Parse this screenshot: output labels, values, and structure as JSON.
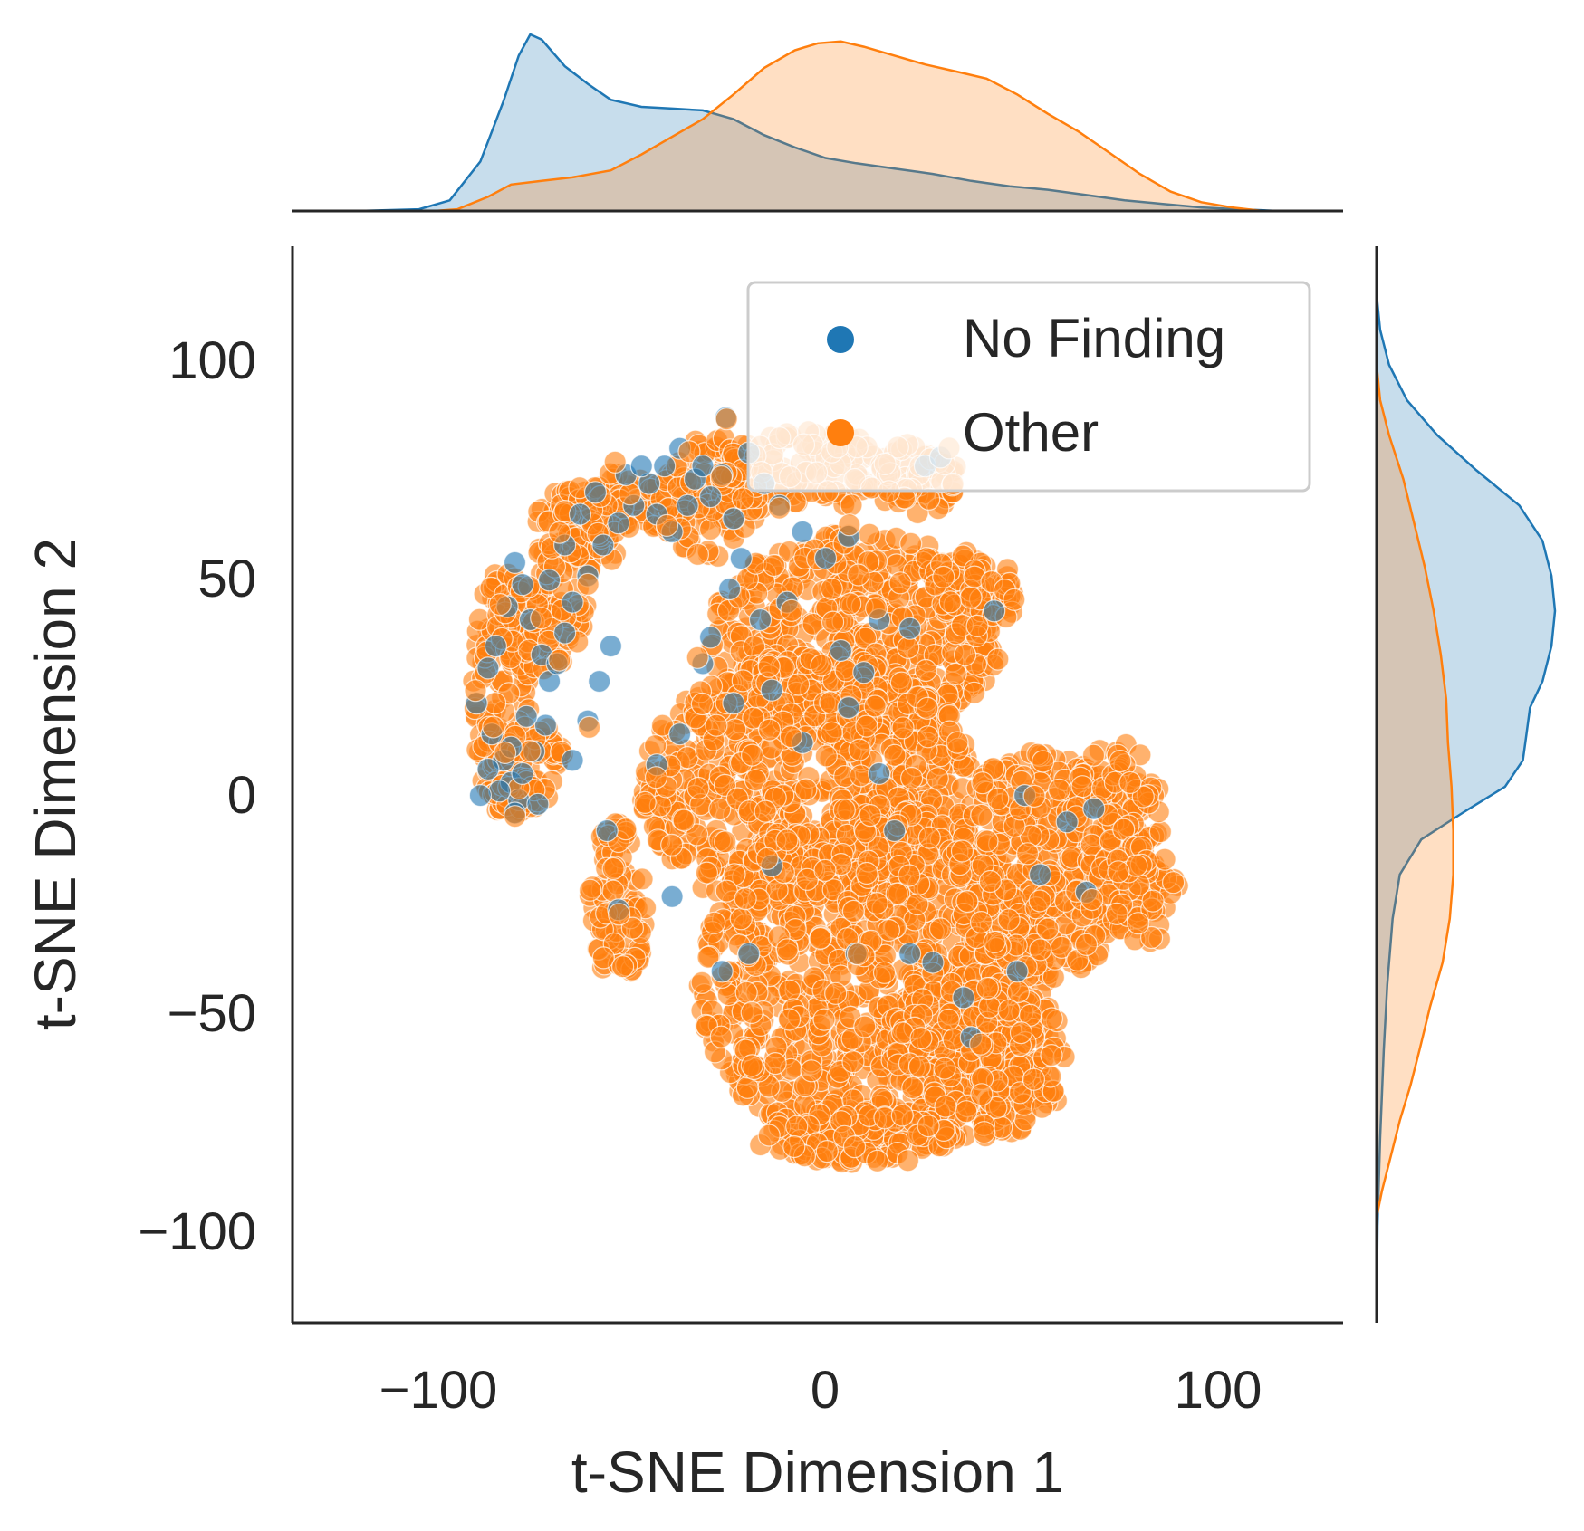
{
  "chart_data": {
    "type": "scatter",
    "subtype": "jointplot-with-marginal-kde",
    "title": "",
    "xlabel": "t-SNE Dimension 1",
    "ylabel": "t-SNE Dimension 2",
    "xlim": [
      -137,
      137
    ],
    "ylim": [
      -122,
      123
    ],
    "xticks": [
      -100,
      0,
      100
    ],
    "xtick_labels": [
      "−100",
      "0",
      "100"
    ],
    "yticks": [
      -100,
      -50,
      0,
      50,
      100
    ],
    "ytick_labels": [
      "−100",
      "−50",
      "0",
      "50",
      "100"
    ],
    "grid": false,
    "legend": {
      "position": "top-right",
      "entries": [
        "No Finding",
        "Other"
      ]
    },
    "series": [
      {
        "name": "No Finding",
        "color": "#1f77b4",
        "points": [
          [
            -89,
            19
          ],
          [
            -86,
            27
          ],
          [
            -84,
            32
          ],
          [
            -81,
            41
          ],
          [
            -79,
            51
          ],
          [
            -77,
            46
          ],
          [
            -75,
            38
          ],
          [
            -72,
            30
          ],
          [
            -70,
            24
          ],
          [
            -68,
            28
          ],
          [
            -66,
            35
          ],
          [
            -64,
            42
          ],
          [
            -60,
            48
          ],
          [
            -56,
            55
          ],
          [
            -52,
            60
          ],
          [
            -48,
            64
          ],
          [
            -44,
            69
          ],
          [
            -40,
            73
          ],
          [
            -36,
            77
          ],
          [
            -32,
            70
          ],
          [
            -28,
            66
          ],
          [
            -24,
            84
          ],
          [
            -22,
            61
          ],
          [
            -20,
            52
          ],
          [
            -85,
            12
          ],
          [
            -82,
            6
          ],
          [
            -80,
            1
          ],
          [
            -78,
            -3
          ],
          [
            -83,
            -1
          ],
          [
            -77,
            3
          ],
          [
            -74,
            8
          ],
          [
            -71,
            14
          ],
          [
            -88,
            -2
          ],
          [
            -79,
            -6
          ],
          [
            -73,
            -4
          ],
          [
            -86,
            4
          ],
          [
            -80,
            9
          ],
          [
            -76,
            16
          ],
          [
            -70,
            47
          ],
          [
            -66,
            55
          ],
          [
            -62,
            62
          ],
          [
            -58,
            67
          ],
          [
            -50,
            71
          ],
          [
            -46,
            73
          ],
          [
            -42,
            62
          ],
          [
            -38,
            58
          ],
          [
            -34,
            64
          ],
          [
            -30,
            73
          ],
          [
            -25,
            71
          ],
          [
            -18,
            76
          ],
          [
            -14,
            69
          ],
          [
            -10,
            64
          ],
          [
            -4,
            58
          ],
          [
            2,
            52
          ],
          [
            8,
            57
          ],
          [
            -23,
            45
          ],
          [
            -15,
            38
          ],
          [
            -8,
            42
          ],
          [
            6,
            31
          ],
          [
            12,
            26
          ],
          [
            16,
            38
          ],
          [
            24,
            36
          ],
          [
            28,
            73
          ],
          [
            32,
            75
          ],
          [
            46,
            40
          ],
          [
            -28,
            34
          ],
          [
            -30,
            28
          ],
          [
            -12,
            22
          ],
          [
            -22,
            19
          ],
          [
            -4,
            10
          ],
          [
            8,
            18
          ],
          [
            -36,
            12
          ],
          [
            -42,
            5
          ],
          [
            16,
            3
          ],
          [
            20,
            -10
          ],
          [
            -12,
            -18
          ],
          [
            -38,
            -25
          ],
          [
            -55,
            -10
          ],
          [
            -52,
            -28
          ],
          [
            -25,
            -42
          ],
          [
            -18,
            -38
          ],
          [
            10,
            -38
          ],
          [
            24,
            -38
          ],
          [
            30,
            -40
          ],
          [
            40,
            -57
          ],
          [
            38,
            -48
          ],
          [
            52,
            -42
          ],
          [
            54,
            -2
          ],
          [
            58,
            -20
          ],
          [
            65,
            -8
          ],
          [
            70,
            -24
          ],
          [
            72,
            -5
          ],
          [
            -64,
            6
          ],
          [
            -60,
            15
          ],
          [
            -57,
            24
          ],
          [
            -54,
            32
          ]
        ]
      },
      {
        "name": "Other",
        "color": "#ff7f0e",
        "shape": {
          "blobs": [
            [
              -82,
              22,
              8,
              28
            ],
            [
              -72,
              38,
              12,
              12
            ],
            [
              -63,
              58,
              12,
              10
            ],
            [
              -52,
              64,
              15,
              8
            ],
            [
              -28,
              66,
              14,
              14
            ],
            [
              -2,
              72,
              26,
              9
            ],
            [
              25,
              70,
              12,
              8
            ],
            [
              10,
              34,
              38,
              24
            ],
            [
              -2,
              0,
              44,
              30
            ],
            [
              15,
              -44,
              46,
              40
            ],
            [
              58,
              -18,
              24,
              26
            ],
            [
              78,
              -6,
              12,
              16
            ],
            [
              85,
              -24,
              10,
              12
            ],
            [
              42,
              -62,
              24,
              18
            ],
            [
              10,
              -80,
              26,
              6
            ],
            [
              -52,
              -26,
              8,
              18
            ],
            [
              40,
              44,
              12,
              10
            ],
            [
              -74,
              6,
              8,
              8
            ],
            [
              -78,
              -2,
              8,
              4
            ]
          ]
        }
      }
    ],
    "marginal_x_kde": {
      "No Finding": [
        [
          -120,
          0
        ],
        [
          -104,
          0.01
        ],
        [
          -96,
          0.06
        ],
        [
          -88,
          0.28
        ],
        [
          -82,
          0.62
        ],
        [
          -78,
          0.88
        ],
        [
          -75,
          1.0
        ],
        [
          -72,
          0.97
        ],
        [
          -66,
          0.82
        ],
        [
          -60,
          0.72
        ],
        [
          -54,
          0.63
        ],
        [
          -46,
          0.59
        ],
        [
          -38,
          0.58
        ],
        [
          -30,
          0.57
        ],
        [
          -22,
          0.52
        ],
        [
          -14,
          0.43
        ],
        [
          -6,
          0.36
        ],
        [
          2,
          0.3
        ],
        [
          10,
          0.27
        ],
        [
          20,
          0.24
        ],
        [
          30,
          0.21
        ],
        [
          40,
          0.17
        ],
        [
          50,
          0.14
        ],
        [
          60,
          0.12
        ],
        [
          70,
          0.09
        ],
        [
          80,
          0.06
        ],
        [
          90,
          0.04
        ],
        [
          100,
          0.02
        ],
        [
          110,
          0.01
        ],
        [
          120,
          0
        ]
      ],
      "Other": [
        [
          -100,
          0
        ],
        [
          -94,
          0.01
        ],
        [
          -86,
          0.08
        ],
        [
          -80,
          0.15
        ],
        [
          -72,
          0.17
        ],
        [
          -64,
          0.19
        ],
        [
          -54,
          0.23
        ],
        [
          -46,
          0.32
        ],
        [
          -38,
          0.42
        ],
        [
          -30,
          0.52
        ],
        [
          -22,
          0.66
        ],
        [
          -14,
          0.81
        ],
        [
          -6,
          0.91
        ],
        [
          0,
          0.95
        ],
        [
          6,
          0.96
        ],
        [
          12,
          0.93
        ],
        [
          20,
          0.88
        ],
        [
          28,
          0.83
        ],
        [
          36,
          0.79
        ],
        [
          44,
          0.75
        ],
        [
          52,
          0.66
        ],
        [
          60,
          0.55
        ],
        [
          68,
          0.45
        ],
        [
          76,
          0.33
        ],
        [
          84,
          0.21
        ],
        [
          92,
          0.11
        ],
        [
          100,
          0.05
        ],
        [
          108,
          0.02
        ],
        [
          116,
          0
        ]
      ]
    },
    "marginal_y_kde": {
      "No Finding": [
        [
          -122,
          0
        ],
        [
          -100,
          0.005
        ],
        [
          -80,
          0.02
        ],
        [
          -60,
          0.04
        ],
        [
          -45,
          0.06
        ],
        [
          -30,
          0.09
        ],
        [
          -20,
          0.13
        ],
        [
          -12,
          0.25
        ],
        [
          -6,
          0.48
        ],
        [
          0,
          0.72
        ],
        [
          6,
          0.82
        ],
        [
          12,
          0.84
        ],
        [
          18,
          0.86
        ],
        [
          24,
          0.93
        ],
        [
          32,
          0.98
        ],
        [
          40,
          1.0
        ],
        [
          48,
          0.98
        ],
        [
          56,
          0.93
        ],
        [
          64,
          0.8
        ],
        [
          72,
          0.56
        ],
        [
          80,
          0.34
        ],
        [
          88,
          0.17
        ],
        [
          96,
          0.07
        ],
        [
          104,
          0.02
        ],
        [
          112,
          0
        ]
      ],
      "Other": [
        [
          -98,
          0
        ],
        [
          -92,
          0.03
        ],
        [
          -84,
          0.08
        ],
        [
          -76,
          0.13
        ],
        [
          -68,
          0.19
        ],
        [
          -60,
          0.24
        ],
        [
          -50,
          0.3
        ],
        [
          -40,
          0.37
        ],
        [
          -30,
          0.41
        ],
        [
          -20,
          0.43
        ],
        [
          -10,
          0.43
        ],
        [
          0,
          0.42
        ],
        [
          10,
          0.4
        ],
        [
          20,
          0.39
        ],
        [
          30,
          0.36
        ],
        [
          40,
          0.32
        ],
        [
          50,
          0.27
        ],
        [
          60,
          0.21
        ],
        [
          70,
          0.15
        ],
        [
          80,
          0.07
        ],
        [
          88,
          0.02
        ],
        [
          96,
          0
        ]
      ]
    }
  }
}
